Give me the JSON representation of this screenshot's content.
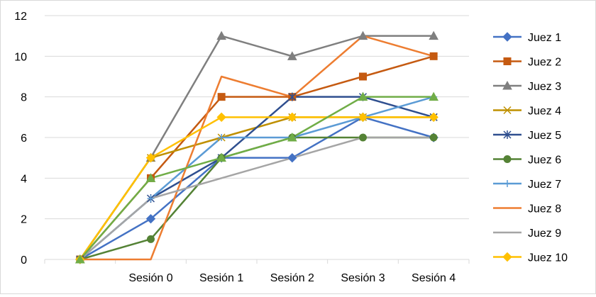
{
  "chart_data": {
    "type": "line",
    "title": "",
    "xlabel": "",
    "ylabel": "",
    "ylim": [
      0,
      12
    ],
    "yticks": [
      0,
      2,
      4,
      6,
      8,
      10,
      12
    ],
    "categories": [
      "",
      "Sesión 0",
      "Sesión 1",
      "Sesión 2",
      "Sesión 3",
      "Sesión 4"
    ],
    "grid": "horizontal",
    "legend_position": "right",
    "series": [
      {
        "name": "Juez 1",
        "values": [
          0,
          2,
          5,
          5,
          7,
          6
        ],
        "color": "#4472C4",
        "marker": "diamond"
      },
      {
        "name": "Juez 2",
        "values": [
          0,
          4,
          8,
          8,
          9,
          10
        ],
        "color": "#C55A11",
        "marker": "square"
      },
      {
        "name": "Juez 3",
        "values": [
          0,
          5,
          11,
          10,
          11,
          11
        ],
        "color": "#7F7F7F",
        "marker": "triangle"
      },
      {
        "name": "Juez 4",
        "values": [
          0,
          5,
          6,
          7,
          7,
          7
        ],
        "color": "#BF9000",
        "marker": "x"
      },
      {
        "name": "Juez 5",
        "values": [
          0,
          3,
          5,
          8,
          8,
          7
        ],
        "color": "#2F4F8F",
        "marker": "star"
      },
      {
        "name": "Juez 6",
        "values": [
          0,
          1,
          5,
          6,
          6,
          6
        ],
        "color": "#548235",
        "marker": "circle"
      },
      {
        "name": "Juez 7",
        "values": [
          0,
          3,
          6,
          6,
          7,
          8
        ],
        "color": "#5B9BD5",
        "marker": "plus"
      },
      {
        "name": "Juez 8",
        "values": [
          0,
          0,
          9,
          8,
          11,
          10
        ],
        "color": "#ED7D31",
        "marker": "none"
      },
      {
        "name": "Juez 9",
        "values": [
          0,
          3,
          4,
          5,
          6,
          6
        ],
        "color": "#A5A5A5",
        "marker": "none"
      },
      {
        "name": "Juez 10",
        "values": [
          0,
          5,
          7,
          7,
          7,
          7
        ],
        "color": "#FFC000",
        "marker": "diamond"
      },
      {
        "name": "",
        "values": [
          0,
          4,
          5,
          6,
          8,
          8
        ],
        "color": "#70AD47",
        "marker": "triangle"
      }
    ]
  }
}
